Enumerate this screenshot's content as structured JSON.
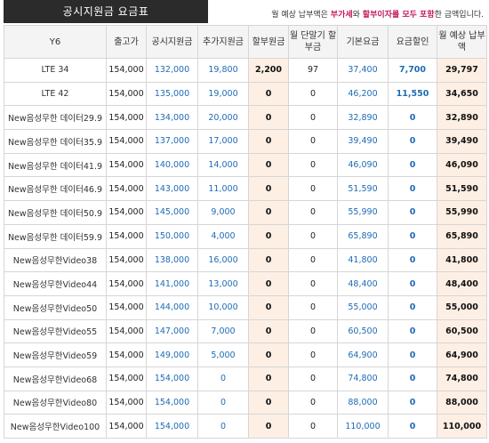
{
  "header": {
    "title": "공시지원금 요금표",
    "note_prefix": "월 예상 납부액은 ",
    "note_hl1": "부가세",
    "note_mid": "와 ",
    "note_hl2": "할부이자를 모두 포함",
    "note_suffix": "한 금액입니다."
  },
  "table": {
    "columns": [
      "Y6",
      "출고가",
      "공시지원금",
      "추가지원금",
      "할부원금",
      "월 단말기 할부금",
      "기본요금",
      "요금할인",
      "월 예상 납부액"
    ],
    "rows": [
      {
        "plan": "LTE 34",
        "price": "154,000",
        "subsidy": "132,000",
        "extra": "19,800",
        "principal": "2,200",
        "monthly": "97",
        "base": "37,400",
        "discount": "7,700",
        "total": "29,797"
      },
      {
        "plan": "LTE 42",
        "price": "154,000",
        "subsidy": "135,000",
        "extra": "19,000",
        "principal": "0",
        "monthly": "0",
        "base": "46,200",
        "discount": "11,550",
        "total": "34,650"
      },
      {
        "plan": "New음성무한 데이터29.9",
        "price": "154,000",
        "subsidy": "134,000",
        "extra": "20,000",
        "principal": "0",
        "monthly": "0",
        "base": "32,890",
        "discount": "0",
        "total": "32,890"
      },
      {
        "plan": "New음성무한 데이터35.9",
        "price": "154,000",
        "subsidy": "137,000",
        "extra": "17,000",
        "principal": "0",
        "monthly": "0",
        "base": "39,490",
        "discount": "0",
        "total": "39,490"
      },
      {
        "plan": "New음성무한 데이터41.9",
        "price": "154,000",
        "subsidy": "140,000",
        "extra": "14,000",
        "principal": "0",
        "monthly": "0",
        "base": "46,090",
        "discount": "0",
        "total": "46,090"
      },
      {
        "plan": "New음성무한 데이터46.9",
        "price": "154,000",
        "subsidy": "143,000",
        "extra": "11,000",
        "principal": "0",
        "monthly": "0",
        "base": "51,590",
        "discount": "0",
        "total": "51,590"
      },
      {
        "plan": "New음성무한 데이터50.9",
        "price": "154,000",
        "subsidy": "145,000",
        "extra": "9,000",
        "principal": "0",
        "monthly": "0",
        "base": "55,990",
        "discount": "0",
        "total": "55,990"
      },
      {
        "plan": "New음성무한 데이터59.9",
        "price": "154,000",
        "subsidy": "150,000",
        "extra": "4,000",
        "principal": "0",
        "monthly": "0",
        "base": "65,890",
        "discount": "0",
        "total": "65,890"
      },
      {
        "plan": "New음성무한Video38",
        "price": "154,000",
        "subsidy": "138,000",
        "extra": "16,000",
        "principal": "0",
        "monthly": "0",
        "base": "41,800",
        "discount": "0",
        "total": "41,800"
      },
      {
        "plan": "New음성무한Video44",
        "price": "154,000",
        "subsidy": "141,000",
        "extra": "13,000",
        "principal": "0",
        "monthly": "0",
        "base": "48,400",
        "discount": "0",
        "total": "48,400"
      },
      {
        "plan": "New음성무한Video50",
        "price": "154,000",
        "subsidy": "144,000",
        "extra": "10,000",
        "principal": "0",
        "monthly": "0",
        "base": "55,000",
        "discount": "0",
        "total": "55,000"
      },
      {
        "plan": "New음성무한Video55",
        "price": "154,000",
        "subsidy": "147,000",
        "extra": "7,000",
        "principal": "0",
        "monthly": "0",
        "base": "60,500",
        "discount": "0",
        "total": "60,500"
      },
      {
        "plan": "New음성무한Video59",
        "price": "154,000",
        "subsidy": "149,000",
        "extra": "5,000",
        "principal": "0",
        "monthly": "0",
        "base": "64,900",
        "discount": "0",
        "total": "64,900"
      },
      {
        "plan": "New음성무한Video68",
        "price": "154,000",
        "subsidy": "154,000",
        "extra": "0",
        "principal": "0",
        "monthly": "0",
        "base": "74,800",
        "discount": "0",
        "total": "74,800"
      },
      {
        "plan": "New음성무한Video80",
        "price": "154,000",
        "subsidy": "154,000",
        "extra": "0",
        "principal": "0",
        "monthly": "0",
        "base": "88,000",
        "discount": "0",
        "total": "88,000"
      },
      {
        "plan": "New음성무한Video100",
        "price": "154,000",
        "subsidy": "154,000",
        "extra": "0",
        "principal": "0",
        "monthly": "0",
        "base": "110,000",
        "discount": "0",
        "total": "110,000"
      }
    ]
  },
  "colors": {
    "title_bg": "#2b2b2b",
    "header_bg": "#f4f4f4",
    "highlight_col_bg": "#fdefe4",
    "value_blue": "#1e6bb5",
    "note_accent": "#c2185b"
  }
}
